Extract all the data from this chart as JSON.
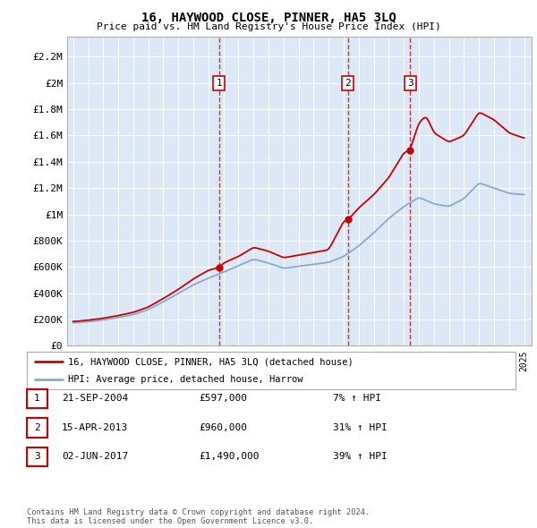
{
  "title": "16, HAYWOOD CLOSE, PINNER, HA5 3LQ",
  "subtitle": "Price paid vs. HM Land Registry's House Price Index (HPI)",
  "plot_bg_color": "#dce8f5",
  "fig_bg_color": "#ffffff",
  "ylim": [
    0,
    2300000
  ],
  "ytick_labels": [
    "£0",
    "£200K",
    "£400K",
    "£600K",
    "£800K",
    "£1M",
    "£1.2M",
    "£1.4M",
    "£1.6M",
    "£1.8M",
    "£2M",
    "£2.2M"
  ],
  "ytick_values": [
    0,
    200000,
    400000,
    600000,
    800000,
    1000000,
    1200000,
    1400000,
    1600000,
    1800000,
    2000000,
    2200000
  ],
  "purchase_dates": [
    2004.72,
    2013.29,
    2017.42
  ],
  "purchase_prices": [
    597000,
    960000,
    1490000
  ],
  "purchase_labels": [
    "1",
    "2",
    "3"
  ],
  "legend_entries": [
    {
      "label": "16, HAYWOOD CLOSE, PINNER, HA5 3LQ (detached house)",
      "color": "#cc0000"
    },
    {
      "label": "HPI: Average price, detached house, Harrow",
      "color": "#88aacc"
    }
  ],
  "table_rows": [
    {
      "num": "1",
      "date": "21-SEP-2004",
      "price": "£597,000",
      "change": "7% ↑ HPI"
    },
    {
      "num": "2",
      "date": "15-APR-2013",
      "price": "£960,000",
      "change": "31% ↑ HPI"
    },
    {
      "num": "3",
      "date": "02-JUN-2017",
      "price": "£1,490,000",
      "change": "39% ↑ HPI"
    }
  ],
  "footer": "Contains HM Land Registry data © Crown copyright and database right 2024.\nThis data is licensed under the Open Government Licence v3.0.",
  "hpi_color": "#88aacc",
  "sale_line_color": "#cc0000",
  "sale_dot_color": "#cc0000",
  "vline_color": "#cc2222",
  "grid_color": "#ffffff",
  "xlabel_years": [
    1995,
    1996,
    1997,
    1998,
    1999,
    2000,
    2001,
    2002,
    2003,
    2004,
    2005,
    2006,
    2007,
    2008,
    2009,
    2010,
    2011,
    2012,
    2013,
    2014,
    2015,
    2016,
    2017,
    2018,
    2019,
    2020,
    2021,
    2022,
    2023,
    2024,
    2025
  ],
  "sale_curve_points": {
    "t": [
      1995,
      1996,
      1997,
      1998,
      1999,
      2000,
      2001,
      2002,
      2003,
      2004,
      2004.72,
      2005,
      2006,
      2007,
      2008,
      2009,
      2010,
      2011,
      2012,
      2013,
      2013.29,
      2014,
      2015,
      2016,
      2017,
      2017.42,
      2018,
      2018.5,
      2019,
      2020,
      2021,
      2022,
      2023,
      2024,
      2025
    ],
    "v": [
      185000,
      195000,
      210000,
      230000,
      255000,
      295000,
      360000,
      430000,
      510000,
      575000,
      597000,
      630000,
      680000,
      750000,
      720000,
      670000,
      690000,
      710000,
      730000,
      950000,
      960000,
      1050000,
      1150000,
      1280000,
      1470000,
      1490000,
      1700000,
      1750000,
      1620000,
      1550000,
      1600000,
      1780000,
      1720000,
      1620000,
      1580000
    ]
  },
  "hpi_curve_points": {
    "t": [
      1995,
      1996,
      1997,
      1998,
      1999,
      2000,
      2001,
      2002,
      2003,
      2004,
      2005,
      2006,
      2007,
      2008,
      2009,
      2010,
      2011,
      2012,
      2013,
      2014,
      2015,
      2016,
      2017,
      2018,
      2019,
      2020,
      2021,
      2022,
      2023,
      2024,
      2025
    ],
    "v": [
      175000,
      183000,
      197000,
      215000,
      238000,
      275000,
      335000,
      400000,
      465000,
      515000,
      560000,
      610000,
      660000,
      630000,
      590000,
      605000,
      620000,
      635000,
      680000,
      760000,
      860000,
      970000,
      1060000,
      1130000,
      1080000,
      1060000,
      1120000,
      1240000,
      1200000,
      1160000,
      1150000
    ]
  }
}
